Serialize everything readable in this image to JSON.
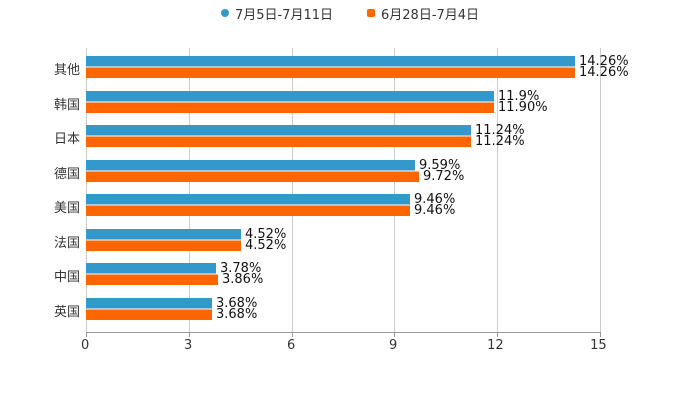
{
  "legend": [
    {
      "label": "7月5日-7月11日",
      "color": "#3399cc",
      "shape": "circle"
    },
    {
      "label": "6月28日-7月4日",
      "color": "#ff6600",
      "shape": "square"
    }
  ],
  "axis": {
    "ticks": [
      "0",
      "3",
      "6",
      "9",
      "12",
      "15"
    ]
  },
  "chart_data": {
    "type": "bar",
    "orientation": "horizontal",
    "title": "",
    "xlabel": "",
    "ylabel": "",
    "xlim": [
      0,
      15
    ],
    "grid": true,
    "legend_position": "top",
    "categories": [
      "其他",
      "韩国",
      "日本",
      "德国",
      "美国",
      "法国",
      "中国",
      "英国"
    ],
    "series": [
      {
        "name": "7月5日-7月11日",
        "color": "#3399cc",
        "values": [
          14.26,
          11.9,
          11.24,
          9.59,
          9.46,
          4.52,
          3.78,
          3.68
        ],
        "labels": [
          "14.26%",
          "11.9%",
          "11.24%",
          "9.59%",
          "9.46%",
          "4.52%",
          "3.78%",
          "3.68%"
        ]
      },
      {
        "name": "6月28日-7月4日",
        "color": "#ff6600",
        "values": [
          14.26,
          11.9,
          11.24,
          9.72,
          9.46,
          4.52,
          3.86,
          3.68
        ],
        "labels": [
          "14.26%",
          "11.90%",
          "11.24%",
          "9.72%",
          "9.46%",
          "4.52%",
          "3.86%",
          "3.68%"
        ]
      }
    ]
  }
}
